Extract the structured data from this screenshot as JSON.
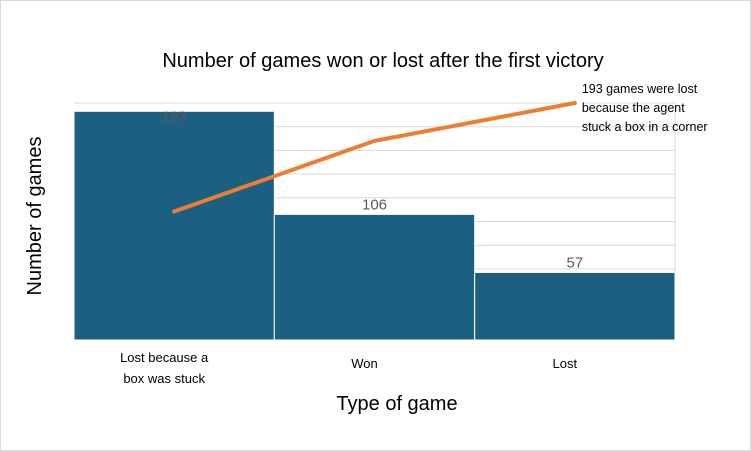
{
  "chart_data": {
    "type": "bar",
    "title": "Number of games won or lost after the first victory",
    "xlabel": "Type of game",
    "ylabel": "Number of games",
    "categories": [
      [
        "Lost because a",
        "box was stuck"
      ],
      [
        "Won"
      ],
      [
        "Lost"
      ]
    ],
    "values": [
      193,
      106,
      57
    ],
    "data_labels": [
      "193",
      "106",
      "57"
    ],
    "line_series": {
      "values": [
        54.2,
        84.0,
        100.0
      ],
      "ylim": [
        0,
        100
      ],
      "unit": "%"
    },
    "ylim": [
      0,
      200
    ],
    "y_gridlines": 10,
    "grid": true,
    "legend": "none",
    "annotation": {
      "lines": [
        "193 games were lost",
        "because the agent",
        "stuck a box in a corner"
      ],
      "target_index": 2
    },
    "colors": {
      "bar": "#1b5f82",
      "line": "#ed7d31",
      "grid": "#d9d9d9",
      "data_label": "#595959"
    }
  }
}
